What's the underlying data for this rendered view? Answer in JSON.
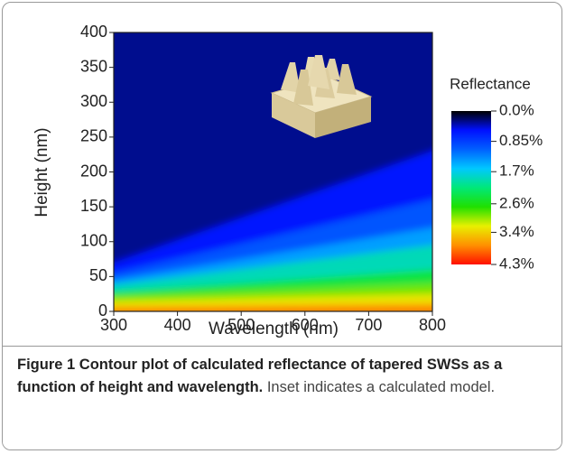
{
  "chart_data": {
    "type": "contour",
    "xlabel": "Wavelength (nm)",
    "ylabel": "Height (nm)",
    "xlim": [
      300,
      800
    ],
    "xticks": [
      300,
      400,
      500,
      600,
      700,
      800
    ],
    "ylim": [
      0,
      400
    ],
    "yticks": [
      0,
      50,
      100,
      150,
      200,
      250,
      300,
      350,
      400
    ],
    "colorbar": {
      "label": "Reflectance",
      "lim": [
        0,
        4.3
      ],
      "ticks": [
        {
          "value": 0,
          "label": "0.0%"
        },
        {
          "value": 0.85,
          "label": "0.85%"
        },
        {
          "value": 1.7,
          "label": "1.7%"
        },
        {
          "value": 2.6,
          "label": "2.6%"
        },
        {
          "value": 3.4,
          "label": "3.4%"
        },
        {
          "value": 4.3,
          "label": "4.3%"
        }
      ],
      "colors": [
        "#000000",
        "#0010ff",
        "#0060ff",
        "#00c8ff",
        "#00e878",
        "#20e000",
        "#e8f000",
        "#ff9000",
        "#ff1000"
      ]
    },
    "contours": {
      "x": [
        300,
        800
      ],
      "base_level": 0.3,
      "levels": [
        0.6,
        1.0,
        1.4,
        1.9,
        2.4,
        2.9,
        3.3,
        3.8
      ],
      "heights": [
        [
          70,
          230
        ],
        [
          55,
          160
        ],
        [
          45,
          120
        ],
        [
          38,
          95
        ],
        [
          28,
          60
        ],
        [
          22,
          40
        ],
        [
          15,
          25
        ],
        [
          6,
          10
        ]
      ]
    }
  },
  "caption": {
    "label": "Figure 1",
    "title": "Contour plot of calculated reflectance of tapered SWSs as a function of height and wavelength.",
    "text": "Inset indicates a calculated model."
  }
}
